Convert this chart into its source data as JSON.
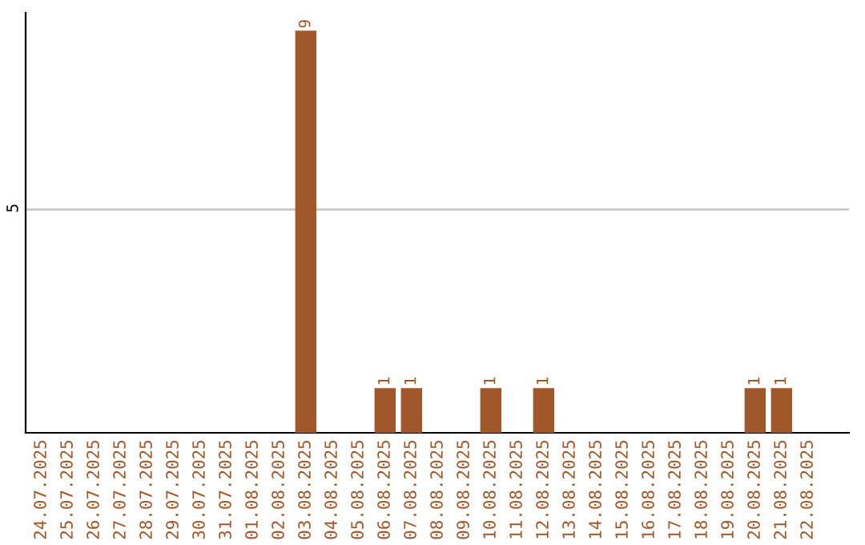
{
  "chart_data": {
    "type": "bar",
    "categories": [
      "24.07.2025",
      "25.07.2025",
      "26.07.2025",
      "27.07.2025",
      "28.07.2025",
      "29.07.2025",
      "30.07.2025",
      "31.07.2025",
      "01.08.2025",
      "02.08.2025",
      "03.08.2025",
      "04.08.2025",
      "05.08.2025",
      "06.08.2025",
      "07.08.2025",
      "08.08.2025",
      "09.08.2025",
      "10.08.2025",
      "11.08.2025",
      "12.08.2025",
      "13.08.2025",
      "14.08.2025",
      "15.08.2025",
      "16.08.2025",
      "17.08.2025",
      "18.08.2025",
      "19.08.2025",
      "20.08.2025",
      "21.08.2025",
      "22.08.2025"
    ],
    "values": [
      0,
      0,
      0,
      0,
      0,
      0,
      0,
      0,
      0,
      0,
      9,
      0,
      0,
      1,
      1,
      0,
      0,
      1,
      0,
      1,
      0,
      0,
      0,
      0,
      0,
      0,
      0,
      1,
      1,
      0
    ],
    "value_labels": [
      null,
      null,
      null,
      null,
      null,
      null,
      null,
      null,
      null,
      null,
      "9",
      null,
      null,
      "1",
      "1",
      null,
      null,
      "1",
      null,
      "1",
      null,
      null,
      null,
      null,
      null,
      null,
      null,
      "1",
      "1",
      null
    ],
    "color": "#a0572a",
    "ylim": [
      0,
      9.4
    ],
    "yticks": [
      5
    ],
    "grid": "y",
    "legend": false
  }
}
